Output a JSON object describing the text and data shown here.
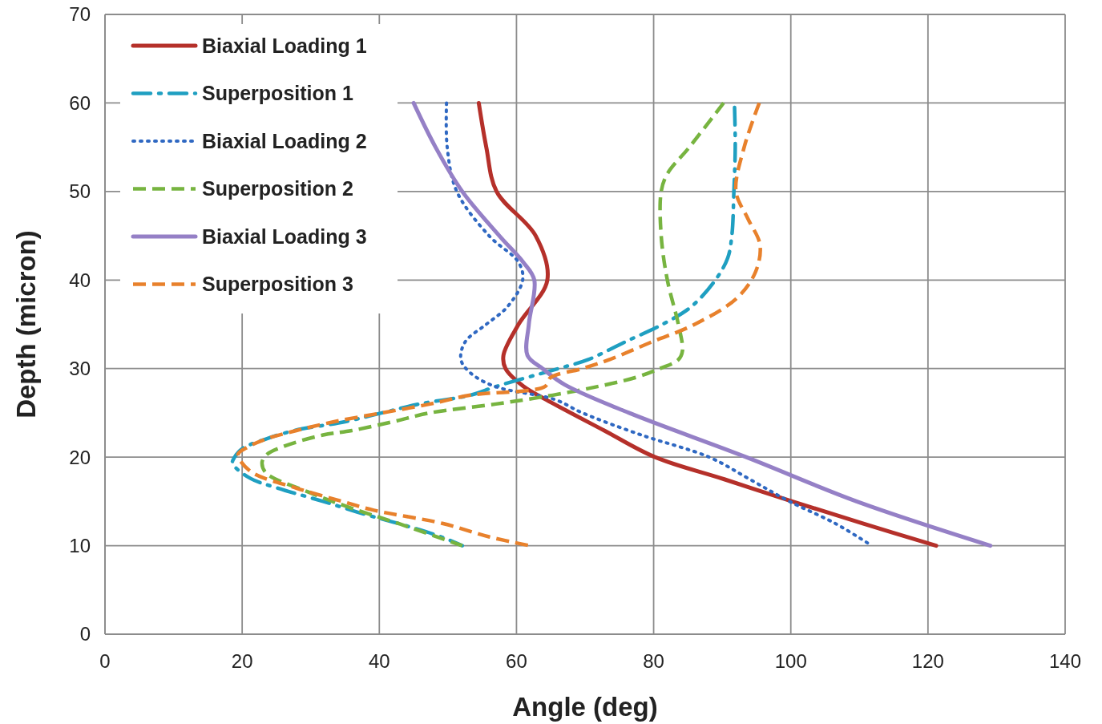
{
  "chart_data": {
    "type": "line",
    "xlabel": "Angle (deg)",
    "ylabel": "Depth (micron)",
    "xlim": [
      0,
      140
    ],
    "xticks": [
      0,
      20,
      40,
      60,
      80,
      100,
      120,
      140
    ],
    "ylim": [
      0,
      70
    ],
    "yticks": [
      0,
      10,
      20,
      30,
      40,
      50,
      60,
      70
    ],
    "grid": true,
    "legend": "top left",
    "marker": "none",
    "series": [
      {
        "name": "Biaxial Loading 1",
        "color": "#b5302a",
        "line_style": "solid",
        "x": [
          54.5,
          55.6,
          57.1,
          62.8,
          64.5,
          60.3,
          58.1,
          58.4,
          61,
          64.3,
          72.8,
          80.2,
          90.3,
          100.2,
          110.5,
          121.2
        ],
        "values": [
          60,
          55,
          50,
          45,
          40,
          35,
          31.5,
          30,
          28,
          26.5,
          23,
          20,
          17.5,
          15,
          12.5,
          10
        ]
      },
      {
        "name": "Superposition 1",
        "color": "#1f9fc1",
        "line_style": "dashdot",
        "x": [
          91.8,
          91.9,
          91.7,
          91.4,
          90.8,
          89,
          85.5,
          81.3,
          75.8,
          70.4,
          66.1,
          57.1,
          53.3,
          45.8,
          40.4,
          35,
          27.6,
          23.3,
          20.1,
          18.9,
          18.6,
          21.2,
          25.2,
          31.8,
          38.1,
          42.8,
          49,
          52.1
        ],
        "values": [
          59.5,
          55,
          50,
          45,
          42.5,
          40,
          37,
          35,
          33,
          31,
          30,
          28,
          27,
          26,
          25,
          24,
          23,
          22,
          21,
          20,
          19.3,
          17.6,
          16.5,
          15,
          13.5,
          12.5,
          11,
          10
        ]
      },
      {
        "name": "Biaxial Loading 2",
        "color": "#2f68c2",
        "line_style": "dotted",
        "x": [
          49.8,
          49.9,
          51.3,
          56,
          60.3,
          60.9,
          58.7,
          55.6,
          52.5,
          51.9,
          53.3,
          56.8,
          65.6,
          69.6,
          78.2,
          88.1,
          94,
          99.8,
          106.5,
          111.8
        ],
        "values": [
          60,
          55,
          50,
          45,
          42,
          40,
          37,
          35,
          33,
          31,
          29.5,
          28,
          26.5,
          25,
          22.5,
          20,
          17.5,
          15,
          12.5,
          10
        ]
      },
      {
        "name": "Superposition 2",
        "color": "#77b440",
        "line_style": "dashed",
        "x": [
          90.2,
          85.2,
          82,
          81.1,
          81.1,
          82,
          83.6,
          84.2,
          83.6,
          80.9,
          77.4,
          72,
          65.3,
          57,
          47.4,
          42,
          36,
          31.8,
          26,
          23.6,
          22.9,
          23.5,
          29.5,
          35.7,
          42.8,
          52.1
        ],
        "values": [
          60,
          55,
          52,
          50,
          45,
          40,
          35,
          32,
          31,
          30,
          29,
          28,
          27,
          26,
          25,
          24,
          23,
          22.5,
          21.2,
          20.3,
          19.4,
          18.2,
          16.1,
          14.3,
          12.5,
          10
        ]
      },
      {
        "name": "Biaxial Loading 3",
        "color": "#9580c6",
        "line_style": "solid",
        "x": [
          45,
          48.2,
          52.1,
          57.5,
          61,
          62.6,
          61.8,
          61.6,
          63.8,
          67,
          76.4,
          93.5,
          109.6,
          129.1
        ],
        "values": [
          60,
          55,
          50,
          45,
          42,
          40,
          35,
          31.5,
          30,
          28.2,
          25,
          20,
          15,
          10
        ]
      },
      {
        "name": "Superposition 3",
        "color": "#e8812c",
        "line_style": "dashed",
        "x": [
          95.4,
          93.2,
          92,
          93.7,
          95.5,
          94.9,
          92.2,
          86,
          79.7,
          73.5,
          69.6,
          65,
          64.2,
          53.3,
          47.4,
          40.4,
          33.4,
          27.9,
          23.3,
          20.5,
          19.4,
          21.2,
          27.9,
          34.6,
          39.2,
          49.3,
          56,
          61.9
        ],
        "values": [
          60,
          55,
          50,
          47,
          44,
          41,
          38,
          35,
          33,
          31,
          30,
          29,
          28,
          27,
          26,
          25,
          24,
          23,
          22,
          21,
          20.3,
          18.4,
          16.5,
          15,
          14,
          12.5,
          11,
          10
        ]
      }
    ]
  }
}
